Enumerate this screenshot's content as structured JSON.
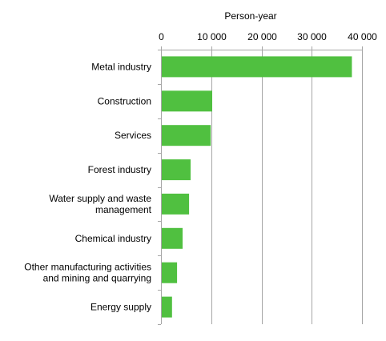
{
  "chart_data": {
    "type": "bar",
    "orientation": "horizontal",
    "xlabel": "Person-year",
    "xlim": [
      0,
      40000
    ],
    "xticks": [
      0,
      10000,
      20000,
      30000,
      40000
    ],
    "xtick_labels": [
      "0",
      "10 000",
      "20 000",
      "30 000",
      "40 000"
    ],
    "grid": true,
    "categories": [
      [
        "Metal industry"
      ],
      [
        "Construction"
      ],
      [
        "Services"
      ],
      [
        "Forest industry"
      ],
      [
        "Water supply and waste",
        "management"
      ],
      [
        "Chemical industry"
      ],
      [
        "Other manufacturing activities",
        "and mining and quarrying"
      ],
      [
        "Energy supply"
      ]
    ],
    "values": [
      38000,
      10200,
      9900,
      5900,
      5600,
      4300,
      3200,
      2200
    ],
    "colors": {
      "bar": "#50c040",
      "grid": "#a6a6a6"
    }
  }
}
